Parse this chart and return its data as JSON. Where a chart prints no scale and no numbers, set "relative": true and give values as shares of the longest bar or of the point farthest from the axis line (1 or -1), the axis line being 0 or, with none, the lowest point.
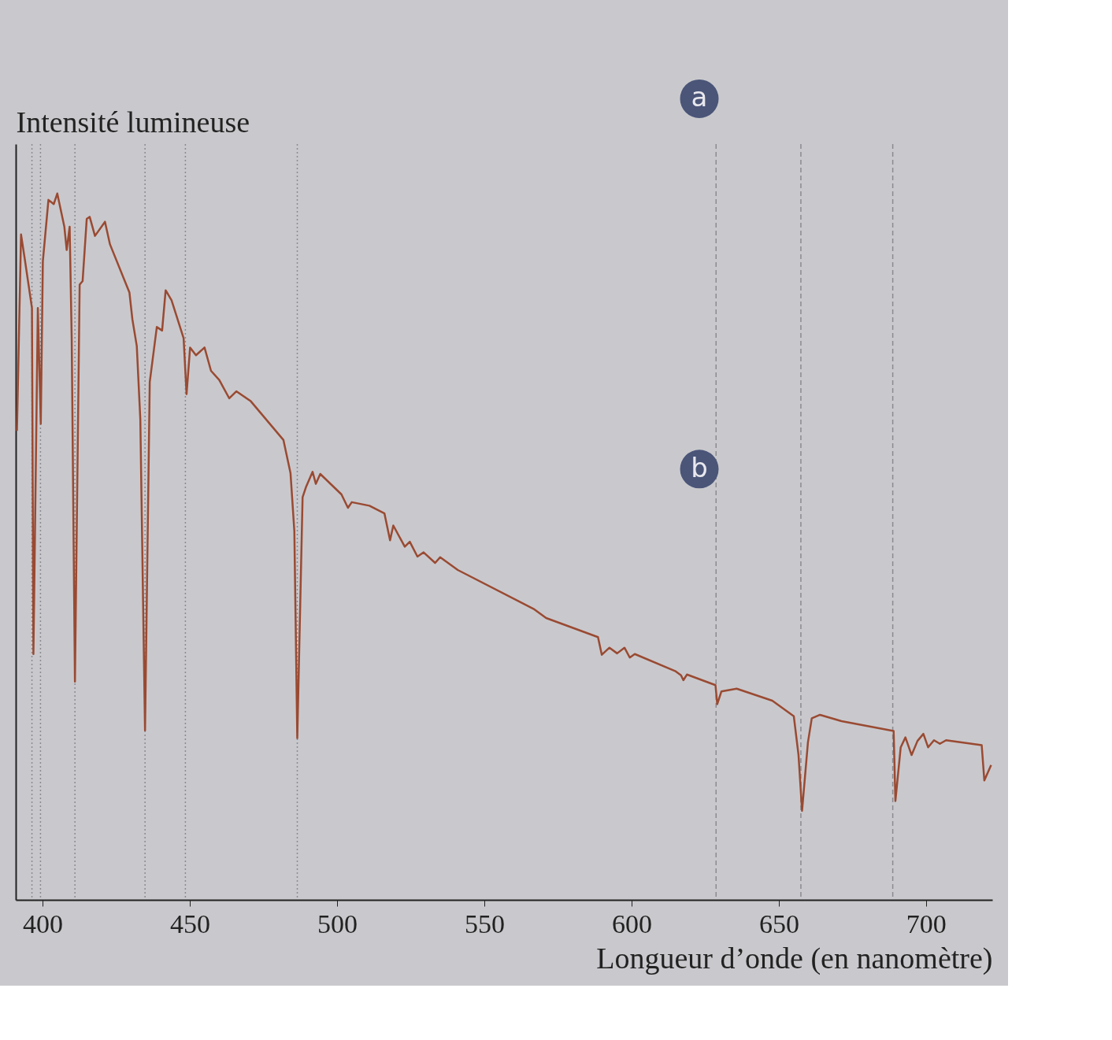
{
  "chart_data": {
    "type": "line",
    "relative": true,
    "xlabel": "Longueur d’onde (en nanomètre)",
    "ylabel": "Intensité lumineuse",
    "xlim": [
      390.9,
      722.5
    ],
    "xticks": [
      400,
      450,
      500,
      550,
      600,
      650,
      700
    ],
    "grid": false,
    "marker": "none",
    "line_style": "solid",
    "annotations": [
      "a",
      "b"
    ],
    "ref_lines": [
      {
        "axis": "x",
        "value": 396.4,
        "color": "#8a8a90",
        "line_style": "dotted"
      },
      {
        "axis": "x",
        "value": 399.3,
        "color": "#8a8a90",
        "line_style": "dotted"
      },
      {
        "axis": "x",
        "value": 411.0,
        "color": "#8a8a90",
        "line_style": "dotted"
      },
      {
        "axis": "x",
        "value": 434.8,
        "color": "#8a8a90",
        "line_style": "dotted"
      },
      {
        "axis": "x",
        "value": 448.5,
        "color": "#8a8a90",
        "line_style": "dotted"
      },
      {
        "axis": "x",
        "value": 486.5,
        "color": "#8a8a90",
        "line_style": "dotted"
      },
      {
        "axis": "x",
        "value": 628.7,
        "color": "#8a8a90",
        "line_style": "dashed"
      },
      {
        "axis": "x",
        "value": 657.5,
        "color": "#8a8a90",
        "line_style": "dashed"
      },
      {
        "axis": "x",
        "value": 688.7,
        "color": "#8a8a90",
        "line_style": "dashed"
      }
    ],
    "series": [
      {
        "color": "#9a4a32",
        "x": [
          391.3,
          392.7,
          393.9,
          396.4,
          396.9,
          398.4,
          399.4,
          400.1,
          402.0,
          403.8,
          405.0,
          407.4,
          408.2,
          409.2,
          409.9,
          411.0,
          412.6,
          413.6,
          415.0,
          416.0,
          417.8,
          421.2,
          422.9,
          429.5,
          430.5,
          432.0,
          433.2,
          434.8,
          436.4,
          438.8,
          440.6,
          441.8,
          443.8,
          447.9,
          448.9,
          450.1,
          452.1,
          455.0,
          457.2,
          460.0,
          463.4,
          465.8,
          470.7,
          481.8,
          484.2,
          485.5,
          486.5,
          488.3,
          489.5,
          491.7,
          492.8,
          494.3,
          501.5,
          503.7,
          505.0,
          511.0,
          516.1,
          518.0,
          519.1,
          523.0,
          524.7,
          527.3,
          529.4,
          533.3,
          535.0,
          541.0,
          566.7,
          571.0,
          588.6,
          589.9,
          592.5,
          595.1,
          597.6,
          599.4,
          601.1,
          614.8,
          616.8,
          617.6,
          618.8,
          628.5,
          629.1,
          630.5,
          635.7,
          647.8,
          655.1,
          656.7,
          657.9,
          659.9,
          661.2,
          664.0,
          671.3,
          689.0,
          689.6,
          691.4,
          693.0,
          695.1,
          697.1,
          699.1,
          700.7,
          702.7,
          704.7,
          706.8,
          718.9,
          719.8,
          722.1
        ],
        "values": [
          0.664,
          0.942,
          0.909,
          0.838,
          0.348,
          0.838,
          0.674,
          0.904,
          0.991,
          0.985,
          1.0,
          0.953,
          0.92,
          0.953,
          0.795,
          0.309,
          0.871,
          0.876,
          0.964,
          0.967,
          0.94,
          0.96,
          0.928,
          0.86,
          0.822,
          0.784,
          0.68,
          0.24,
          0.733,
          0.811,
          0.806,
          0.863,
          0.849,
          0.795,
          0.716,
          0.782,
          0.771,
          0.782,
          0.749,
          0.736,
          0.71,
          0.72,
          0.706,
          0.651,
          0.604,
          0.522,
          0.229,
          0.57,
          0.585,
          0.606,
          0.589,
          0.603,
          0.574,
          0.555,
          0.563,
          0.558,
          0.547,
          0.509,
          0.53,
          0.5,
          0.507,
          0.486,
          0.492,
          0.477,
          0.485,
          0.467,
          0.412,
          0.399,
          0.372,
          0.347,
          0.357,
          0.349,
          0.357,
          0.343,
          0.348,
          0.324,
          0.318,
          0.311,
          0.319,
          0.304,
          0.277,
          0.295,
          0.299,
          0.282,
          0.26,
          0.205,
          0.126,
          0.223,
          0.257,
          0.262,
          0.253,
          0.239,
          0.14,
          0.216,
          0.23,
          0.205,
          0.225,
          0.235,
          0.216,
          0.226,
          0.221,
          0.226,
          0.219,
          0.169,
          0.191
        ]
      }
    ]
  }
}
